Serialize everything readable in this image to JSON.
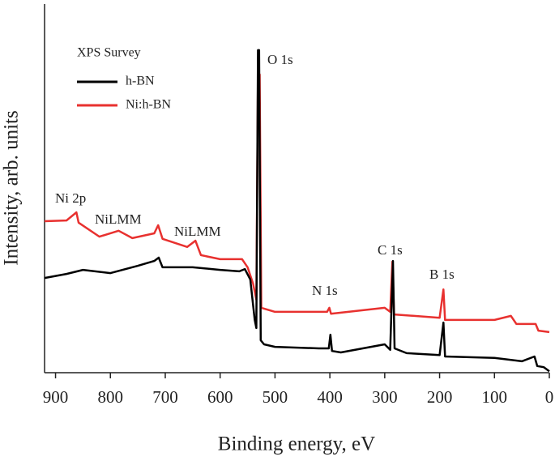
{
  "chart_data": {
    "type": "line",
    "xlabel": "Binding energy, eV",
    "ylabel": "Intensity, arb. units",
    "legend_title": "XPS Survey",
    "legend": "upper left",
    "xlim": [
      920,
      0
    ],
    "xticks": [
      900,
      800,
      700,
      600,
      500,
      400,
      300,
      200,
      100,
      0
    ],
    "ylim": [
      0,
      100
    ],
    "series": [
      {
        "name": "h-BN",
        "color": "#000000",
        "x": [
          920,
          880,
          850,
          800,
          750,
          720,
          712,
          705,
          650,
          600,
          565,
          555,
          545,
          537,
          534,
          531,
          529,
          526,
          520,
          500,
          420,
          402,
          399,
          396,
          380,
          300,
          290,
          285,
          282,
          260,
          200,
          193,
          190,
          100,
          50,
          27,
          22,
          10,
          0
        ],
        "values": [
          25.7,
          26.8,
          27.9,
          27,
          29,
          30.3,
          31.2,
          28.6,
          28.6,
          27.9,
          27.5,
          28.1,
          25.3,
          14.3,
          12.1,
          87.5,
          87.5,
          8.8,
          7.7,
          7,
          6.6,
          6.6,
          10.3,
          5.9,
          5.5,
          7.7,
          6.2,
          30.3,
          6.6,
          5.3,
          4.8,
          13.6,
          4.4,
          4,
          3.1,
          4.4,
          1.8,
          1.5,
          0.4
        ]
      },
      {
        "name": "Ni:h-BN",
        "color": "#e8312f",
        "x": [
          920,
          880,
          862,
          858,
          820,
          785,
          760,
          720,
          713,
          705,
          660,
          645,
          635,
          600,
          560,
          550,
          540,
          534,
          531,
          528,
          525,
          500,
          405,
          401,
          398,
          300,
          290,
          286,
          283,
          200,
          193,
          190,
          100,
          70,
          60,
          25,
          20,
          0
        ],
        "values": [
          41.1,
          41.3,
          43.5,
          40.7,
          36.9,
          38.5,
          36.5,
          37.8,
          40,
          36.3,
          34.1,
          35.8,
          31.9,
          30.8,
          30.8,
          28.6,
          24.2,
          19.8,
          80.9,
          80.9,
          17.6,
          16.5,
          16.5,
          17.6,
          16,
          17.6,
          16.5,
          30.1,
          15.8,
          14.9,
          22.6,
          14.3,
          14.3,
          15.4,
          13.2,
          13.2,
          11.4,
          11
        ]
      }
    ],
    "annotations": [
      "O 1s",
      "Ni 2p",
      "NiLMM",
      "NiLMM",
      "N 1s",
      "C 1s",
      "B 1s"
    ]
  }
}
